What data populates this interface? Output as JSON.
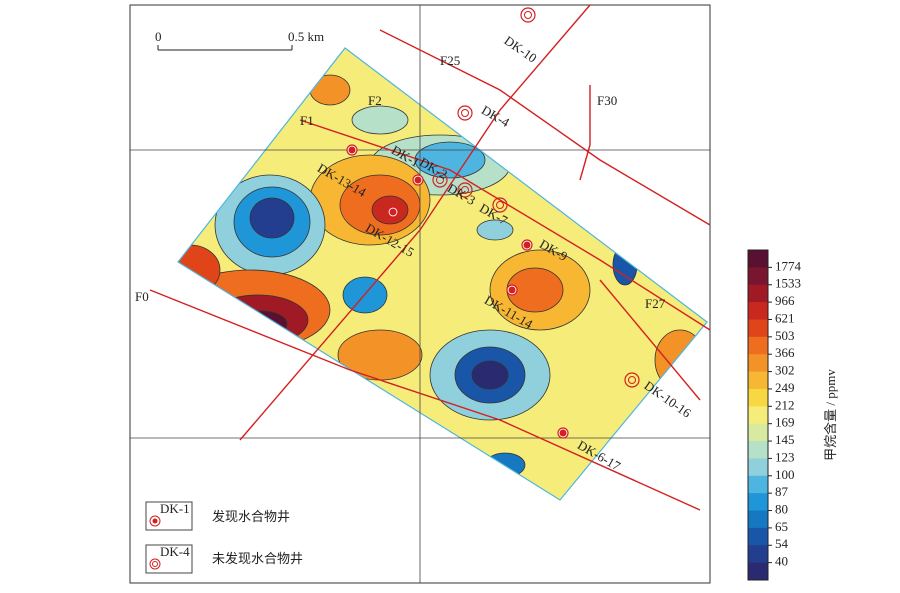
{
  "scale_bar": {
    "start": "0",
    "end": "0.5 km"
  },
  "faults": [
    "F25",
    "F30",
    "F1",
    "F0",
    "F27",
    "F2"
  ],
  "wells": [
    "DK-10",
    "DK-4",
    "DK-1",
    "DK-2",
    "DK-3",
    "DK-7",
    "DK-13-14",
    "DK-12-15",
    "DK-9",
    "DK-11-14",
    "DK-10-16",
    "DK-6-17"
  ],
  "legend": [
    {
      "code": "DK-1",
      "text": "发现水合物井"
    },
    {
      "code": "DK-4",
      "text": "未发现水合物井"
    }
  ],
  "colorbar": {
    "title": "甲烷含量 / ppmv",
    "ticks": [
      1774,
      1533,
      966,
      621,
      503,
      366,
      302,
      249,
      212,
      169,
      145,
      123,
      100,
      87,
      80,
      65,
      54,
      40
    ],
    "colors": [
      "#5a1030",
      "#7a1530",
      "#a01a25",
      "#c8281e",
      "#e0451a",
      "#ee6d1e",
      "#f39327",
      "#f7b733",
      "#f8d840",
      "#f5ec7a",
      "#d8eaa0",
      "#b6e0c8",
      "#8fd0dc",
      "#4db5e0",
      "#1f96d8",
      "#1678c0",
      "#1a56a8",
      "#233e8e",
      "#2a2a70"
    ]
  }
}
